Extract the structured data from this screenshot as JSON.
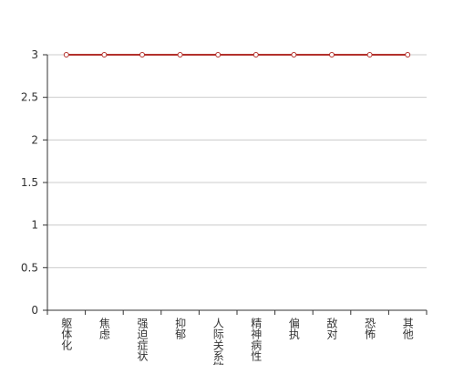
{
  "chart_data": {
    "type": "line",
    "categories": [
      "躯体化",
      "焦虑",
      "强迫症状",
      "抑郁",
      "人际关系敏感",
      "精神病性",
      "偏执",
      "敌对",
      "恐怖",
      "其他"
    ],
    "series": [
      {
        "color": "#b3312c",
        "values": [
          3,
          3,
          3,
          3,
          3,
          3,
          3,
          3,
          3,
          3
        ]
      }
    ],
    "ylim": [
      0,
      3
    ],
    "yticks": [
      0,
      0.5,
      1,
      1.5,
      2,
      2.5,
      3
    ],
    "grid": true
  }
}
